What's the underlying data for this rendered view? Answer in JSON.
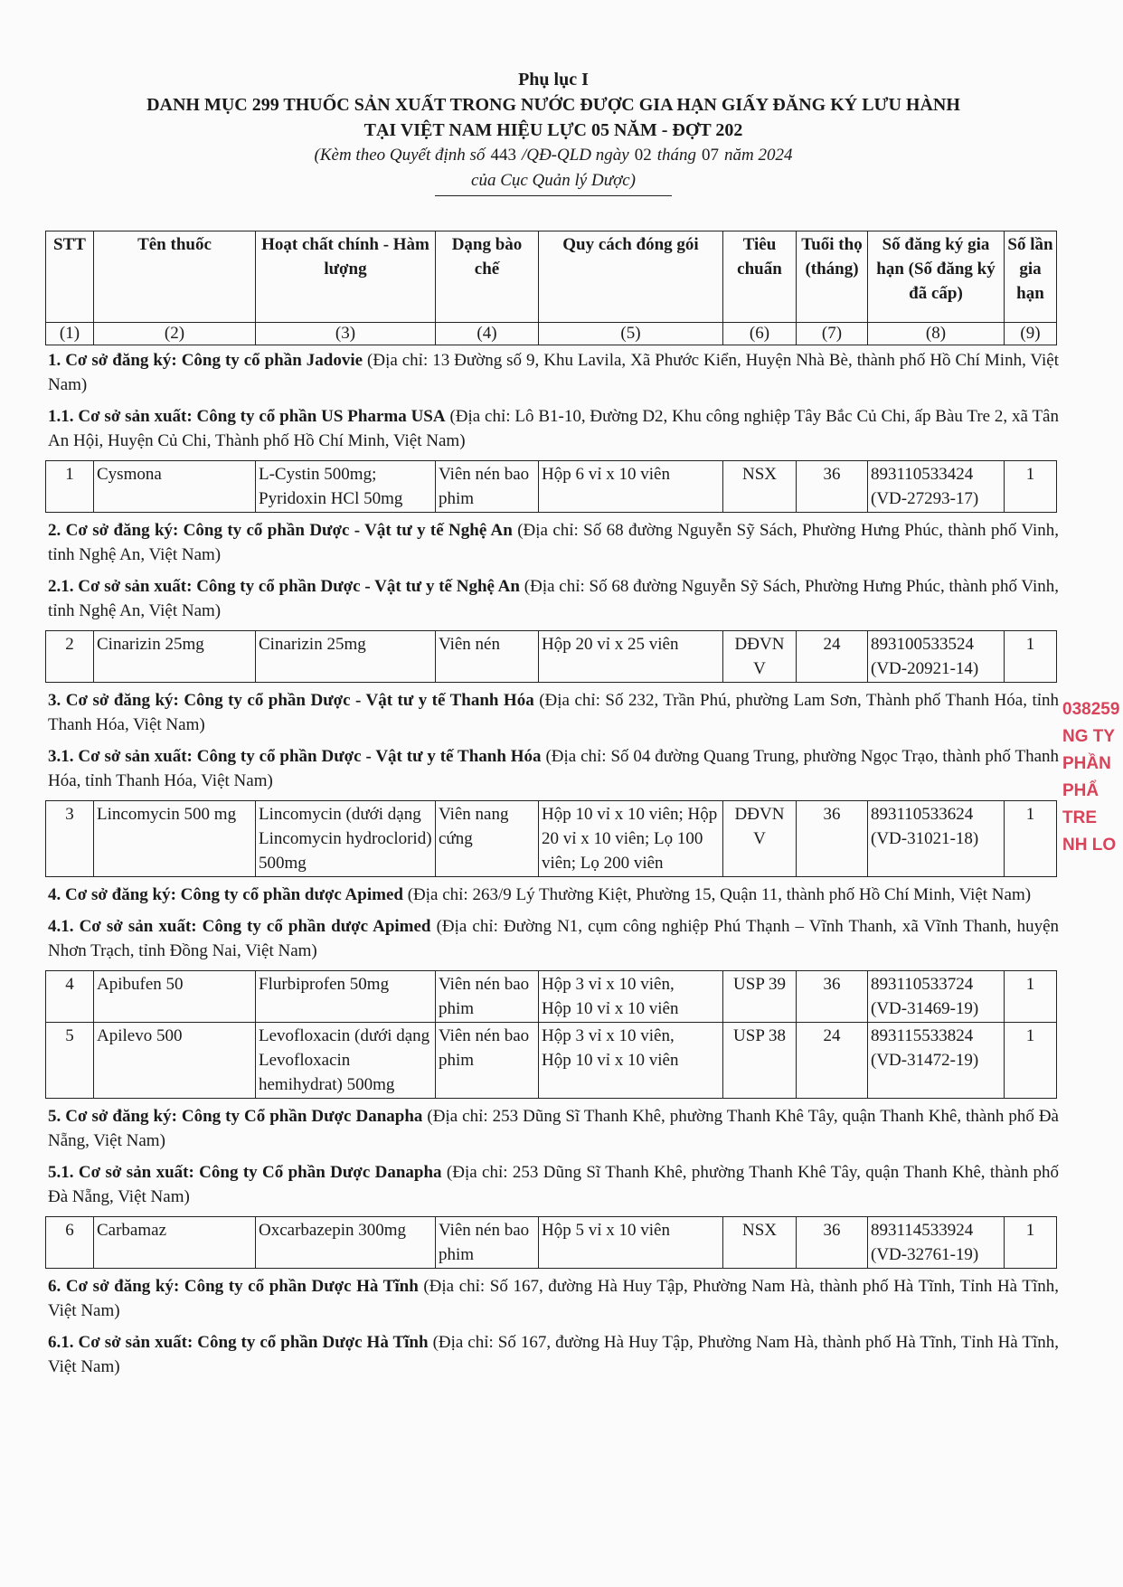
{
  "header": {
    "appendix": "Phụ lục I",
    "title": [
      "DANH MỤC 299 THUỐC SẢN XUẤT TRONG NƯỚC ĐƯỢC GIA HẠN GIẤY ĐĂNG KÝ LƯU HÀNH",
      "TẠI VIỆT NAM HIỆU LỰC 05 NĂM - ĐỢT 202"
    ],
    "decision": {
      "prefix": "(Kèm theo Quyết định số",
      "number": "443",
      "mid": "/QĐ-QLD ngày",
      "day": "02",
      "month_label": "tháng",
      "month": "07",
      "year_label": "năm 2024",
      "line2": "của Cục Quản lý Dược)"
    }
  },
  "table_header": {
    "columns": [
      "STT",
      "Tên thuốc",
      "Hoạt chất chính - Hàm lượng",
      "Dạng bào chế",
      "Quy cách đóng gói",
      "Tiêu chuẩn",
      "Tuổi thọ (tháng)",
      "Số đăng ký gia hạn (Số đăng ký đã cấp)",
      "Số lần gia hạn"
    ],
    "numbers": [
      "(1)",
      "(2)",
      "(3)",
      "(4)",
      "(5)",
      "(6)",
      "(7)",
      "(8)",
      "(9)"
    ]
  },
  "sections": [
    {
      "registrant": {
        "label": "1. Cơ sở đăng ký: Công ty cổ phần Jadovie",
        "address": "(Địa chỉ: 13 Đường số 9, Khu Lavila, Xã Phước Kiển, Huyện Nhà Bè, thành phố Hồ Chí Minh, Việt Nam)"
      },
      "manufacturer": {
        "label": "1.1. Cơ sở sản xuất: Công ty cổ phần US Pharma USA",
        "address": "(Địa chỉ: Lô B1-10, Đường D2, Khu công nghiệp Tây Bắc Củ Chi, ấp Bàu Tre 2, xã Tân An Hội, Huyện Củ Chi, Thành phố Hồ Chí Minh, Việt Nam)"
      },
      "rows": [
        [
          "1",
          "Cysmona",
          "L-Cystin 500mg;\nPyridoxin HCl 50mg",
          "Viên nén bao phim",
          "Hộp 6 vỉ x 10 viên",
          "NSX",
          "36",
          "893110533424\n(VD-27293-17)",
          "1"
        ]
      ]
    },
    {
      "registrant": {
        "label": "2. Cơ sở đăng ký: Công ty cổ phần Dược - Vật tư y tế Nghệ An",
        "address": "(Địa chỉ: Số 68 đường Nguyễn Sỹ Sách, Phường Hưng Phúc, thành phố Vinh, tỉnh Nghệ An, Việt Nam)"
      },
      "manufacturer": {
        "label": "2.1. Cơ sở sản xuất: Công ty cổ phần Dược - Vật tư y tế Nghệ An",
        "address": "(Địa chỉ: Số 68 đường Nguyễn Sỹ Sách, Phường Hưng Phúc, thành phố Vinh, tỉnh Nghệ An, Việt Nam)"
      },
      "rows": [
        [
          "2",
          "Cinarizin 25mg",
          "Cinarizin 25mg",
          "Viên nén",
          "Hộp 20 vỉ x 25 viên",
          "DĐVN\nV",
          "24",
          "893100533524\n(VD-20921-14)",
          "1"
        ]
      ]
    },
    {
      "registrant": {
        "label": "3. Cơ sở đăng ký: Công ty cổ phần Dược - Vật tư y tế Thanh Hóa",
        "address": "(Địa chỉ: Số 232, Trần Phú, phường Lam Sơn, Thành phố Thanh Hóa, tỉnh Thanh Hóa, Việt Nam)"
      },
      "manufacturer": {
        "label": "3.1. Cơ sở sản xuất: Công ty cổ phần Dược - Vật tư y tế Thanh Hóa",
        "address": "(Địa chỉ: Số 04 đường Quang Trung, phường Ngọc Trạo, thành phố Thanh Hóa, tỉnh Thanh Hóa, Việt Nam)"
      },
      "rows": [
        [
          "3",
          "Lincomycin 500 mg",
          "Lincomycin (dưới dạng Lincomycin hydroclorid) 500mg",
          "Viên nang cứng",
          "Hộp 10 vỉ x 10 viên; Hộp 20 vỉ x 10 viên; Lọ 100 viên; Lọ 200 viên",
          "DĐVN\nV",
          "36",
          "893110533624\n(VD-31021-18)",
          "1"
        ]
      ]
    },
    {
      "registrant": {
        "label": "4. Cơ sở đăng ký: Công ty cổ phần dược Apimed",
        "address": "(Địa chỉ: 263/9 Lý Thường Kiệt, Phường 15, Quận 11, thành phố Hồ Chí Minh, Việt Nam)"
      },
      "manufacturer": {
        "label": "4.1. Cơ sở sản xuất: Công ty cổ phần dược Apimed",
        "address": "(Địa chỉ: Đường N1, cụm công nghiệp Phú Thạnh – Vĩnh Thanh, xã Vĩnh Thanh, huyện Nhơn Trạch, tỉnh Đồng Nai, Việt Nam)"
      },
      "rows": [
        [
          "4",
          "Apibufen 50",
          "Flurbiprofen 50mg",
          "Viên nén bao phim",
          "Hộp 3 vỉ x 10 viên,\nHộp 10 vỉ x 10 viên",
          "USP 39",
          "36",
          "893110533724\n(VD-31469-19)",
          "1"
        ],
        [
          "5",
          "Apilevo 500",
          "Levofloxacin (dưới dạng Levofloxacin hemihydrat) 500mg",
          "Viên nén bao phim",
          "Hộp 3 vỉ x 10 viên,\nHộp 10 vỉ x 10 viên",
          "USP 38",
          "24",
          "893115533824\n(VD-31472-19)",
          "1"
        ]
      ]
    },
    {
      "registrant": {
        "label": "5. Cơ sở đăng ký: Công ty Cổ phần Dược Danapha",
        "address": "(Địa chỉ: 253 Dũng Sĩ Thanh Khê, phường Thanh Khê Tây, quận Thanh Khê, thành phố Đà Nẵng, Việt Nam)"
      },
      "manufacturer": {
        "label": "5.1. Cơ sở sản xuất: Công ty Cổ phần Dược Danapha",
        "address": "(Địa chỉ: 253 Dũng Sĩ Thanh Khê, phường Thanh Khê Tây, quận Thanh Khê, thành phố Đà Nẵng, Việt Nam)"
      },
      "rows": [
        [
          "6",
          "Carbamaz",
          "Oxcarbazepin 300mg",
          "Viên nén bao phim",
          "Hộp 5 vỉ x 10 viên",
          "NSX",
          "36",
          "893114533924\n(VD-32761-19)",
          "1"
        ]
      ]
    },
    {
      "registrant": {
        "label": "6. Cơ sở đăng ký: Công ty cổ phần Dược Hà Tĩnh",
        "address": "(Địa chỉ: Số 167, đường Hà Huy Tập, Phường Nam Hà, thành phố Hà Tĩnh, Tỉnh Hà Tĩnh, Việt Nam)"
      },
      "manufacturer": {
        "label": "6.1. Cơ sở sản xuất: Công ty cổ phần Dược Hà Tĩnh",
        "address": "(Địa chỉ: Số 167, đường Hà Huy Tập, Phường Nam Hà, thành phố Hà Tĩnh, Tỉnh Hà Tĩnh, Việt Nam)"
      },
      "rows": []
    }
  ],
  "stamp": [
    "038259",
    "NG TY",
    "PHẦN",
    "PHẨ",
    "TRE",
    "NH LO"
  ]
}
